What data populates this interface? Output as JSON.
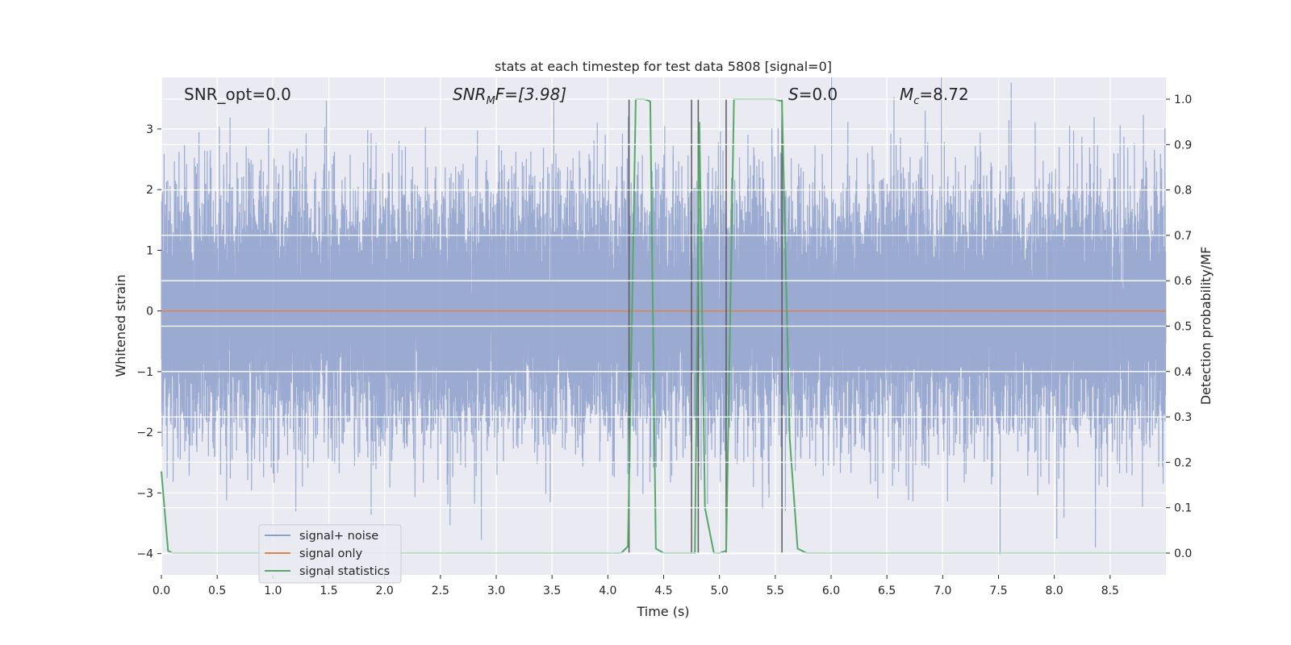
{
  "chart_data": {
    "type": "line",
    "title": "stats at each timestep for test data 5808 [signal=0]",
    "xlabel": "Time (s)",
    "ylabel_left": "Whitened strain",
    "ylabel_right": "Detection probability/MF",
    "xlim": [
      0,
      9.0
    ],
    "ylim_left": [
      -4.35,
      3.85
    ],
    "ylim_right": [
      -0.048,
      1.048
    ],
    "x_ticks": [
      "0.0",
      "0.5",
      "1.0",
      "1.5",
      "2.0",
      "2.5",
      "3.0",
      "3.5",
      "4.0",
      "4.5",
      "5.0",
      "5.5",
      "6.0",
      "6.5",
      "7.0",
      "7.5",
      "8.0",
      "8.5"
    ],
    "y_ticks_left": [
      "3",
      "2",
      "1",
      "0",
      "−1",
      "−2",
      "−3",
      "−4"
    ],
    "y_ticks_right": [
      "1.0",
      "0.9",
      "0.8",
      "0.7",
      "0.6",
      "0.5",
      "0.4",
      "0.3",
      "0.2",
      "0.1",
      "0.0"
    ],
    "grid": true,
    "legend_position": "lower-left",
    "annotations": {
      "snr_opt": "SNR_opt=0.0",
      "snr_mf_sym": "SNR",
      "snr_mf_sub": "M",
      "snr_mf_rest": "F=[3.98]",
      "s_sym": "S",
      "s_rest": "=0.0",
      "mc_sym": "M",
      "mc_sub": "c",
      "mc_rest": "=8.72"
    },
    "series": [
      {
        "name": "signal+ noise",
        "color": "#8c9fcb",
        "axis": "left",
        "sample_rate_hz": 2048,
        "noise_sigma": 1.0,
        "note_shape": "dense gaussian noise over [0, 9]"
      },
      {
        "name": "signal only",
        "color": "#dd8452",
        "axis": "left",
        "x": [
          0,
          9.0
        ],
        "y": [
          0,
          0
        ]
      },
      {
        "name": "signal statistics",
        "color": "#55a868",
        "axis": "right",
        "x": [
          0.0,
          0.06,
          0.1,
          0.15,
          0.5,
          1.0,
          2.0,
          3.0,
          4.0,
          4.12,
          4.18,
          4.25,
          4.33,
          4.38,
          4.43,
          4.5,
          4.6,
          4.7,
          4.78,
          4.82,
          4.87,
          4.95,
          5.0,
          5.06,
          5.13,
          5.5,
          5.56,
          5.63,
          5.7,
          5.78,
          6.0,
          7.0,
          8.0,
          9.0
        ],
        "y": [
          0.18,
          0.005,
          0.0,
          0.0,
          0.0,
          0.0,
          0.0,
          0.0,
          0.0,
          0.0,
          0.015,
          1.0,
          1.0,
          0.995,
          0.01,
          0.0,
          0.0,
          0.0,
          0.0,
          0.95,
          0.1,
          0.0,
          0.0,
          0.005,
          1.0,
          1.0,
          0.995,
          0.25,
          0.01,
          0.0,
          0.0,
          0.0,
          0.0,
          0.0
        ]
      }
    ],
    "vlines": {
      "color": "#5a5a5a",
      "x": [
        4.19,
        4.75,
        4.81,
        5.06,
        5.56
      ],
      "ymin": 0.0,
      "ymax": 1.0
    }
  }
}
